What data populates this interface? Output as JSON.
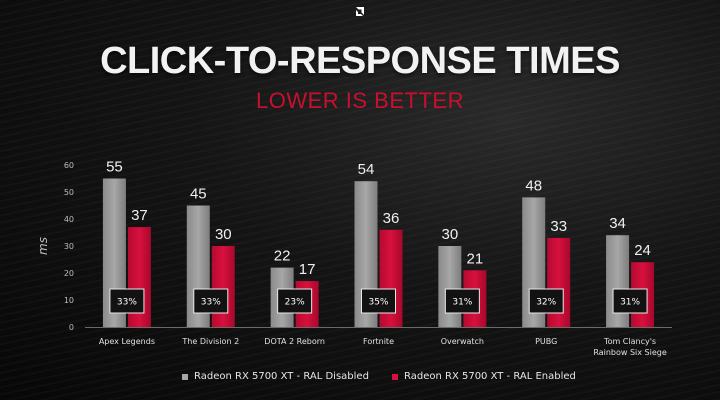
{
  "title": "CLICK-TO-RESPONSE TIMES",
  "subtitle": "LOWER IS BETTER",
  "colors": {
    "disabled": "#a7a7a7",
    "enabled": "#d8103d",
    "accent": "#c8102e"
  },
  "chart_data": {
    "type": "bar",
    "title": "CLICK-TO-RESPONSE TIMES",
    "subtitle": "LOWER IS BETTER",
    "xlabel": "",
    "ylabel": "ms",
    "ylim": [
      0,
      60
    ],
    "yticks": [
      0,
      10,
      20,
      30,
      40,
      50,
      60
    ],
    "grid": false,
    "legend_position": "bottom-center",
    "categories": [
      [
        "Apex Legends"
      ],
      [
        "The Division 2"
      ],
      [
        "DOTA 2 Reborn"
      ],
      [
        "Fortnite"
      ],
      [
        "Overwatch"
      ],
      [
        "PUBG"
      ],
      [
        "Tom Clancy's",
        "Rainbow Six Siege"
      ]
    ],
    "series": [
      {
        "name": "Radeon RX 5700 XT - RAL Disabled",
        "values": [
          55,
          45,
          22,
          54,
          30,
          48,
          34
        ]
      },
      {
        "name": "Radeon RX 5700 XT - RAL Enabled",
        "values": [
          37,
          30,
          17,
          36,
          21,
          33,
          24
        ]
      }
    ],
    "annotations": [
      "33%",
      "33%",
      "23%",
      "35%",
      "31%",
      "32%",
      "31%"
    ]
  }
}
